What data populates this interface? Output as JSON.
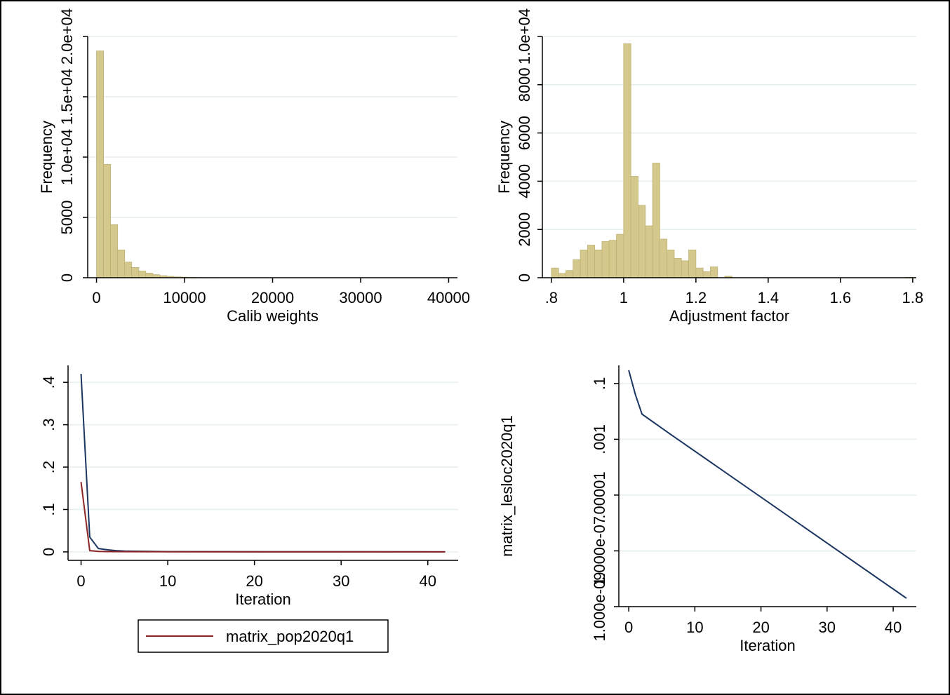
{
  "colors": {
    "bar_fill": "#d4c88c",
    "bar_stroke": "#bfb273",
    "navy": "#1a3660",
    "maroon": "#8c2525",
    "grid": "#e6eeee",
    "frame": "#000000"
  },
  "chart_data": [
    {
      "type": "bar",
      "title": "",
      "xlabel": "Calib weights",
      "ylabel": "Frequency",
      "xlim": [
        -1000,
        41000
      ],
      "ylim": [
        0,
        20000
      ],
      "xticks": [
        {
          "v": 0,
          "label": "0"
        },
        {
          "v": 10000,
          "label": "10000"
        },
        {
          "v": 20000,
          "label": "20000"
        },
        {
          "v": 30000,
          "label": "30000"
        },
        {
          "v": 40000,
          "label": "40000"
        }
      ],
      "yticks": [
        {
          "v": 0,
          "label": "0"
        },
        {
          "v": 5000,
          "label": "5000"
        },
        {
          "v": 10000,
          "label": "1.0e+04"
        },
        {
          "v": 15000,
          "label": "1.5e+04"
        },
        {
          "v": 20000,
          "label": "2.0e+04"
        }
      ],
      "grid": true,
      "bin_start": 0,
      "bin_width": 800,
      "values": [
        18800,
        9400,
        4400,
        2300,
        1300,
        850,
        550,
        380,
        250,
        170,
        110,
        70,
        50,
        30,
        20,
        12,
        8,
        5
      ]
    },
    {
      "type": "bar",
      "title": "",
      "xlabel": "Adjustment factor",
      "ylabel": "Frequency",
      "xlim": [
        0.775,
        1.81
      ],
      "ylim": [
        0,
        10000
      ],
      "xticks": [
        {
          "v": 0.8,
          "label": ".8"
        },
        {
          "v": 1.0,
          "label": "1"
        },
        {
          "v": 1.2,
          "label": "1.2"
        },
        {
          "v": 1.4,
          "label": "1.4"
        },
        {
          "v": 1.6,
          "label": "1.6"
        },
        {
          "v": 1.8,
          "label": "1.8"
        }
      ],
      "yticks": [
        {
          "v": 0,
          "label": "0"
        },
        {
          "v": 2000,
          "label": "2000"
        },
        {
          "v": 4000,
          "label": "4000"
        },
        {
          "v": 6000,
          "label": "6000"
        },
        {
          "v": 8000,
          "label": "8000"
        },
        {
          "v": 10000,
          "label": "1.0e+04"
        }
      ],
      "grid": true,
      "bin_start": 0.8,
      "bin_width": 0.02,
      "values": [
        400,
        180,
        300,
        750,
        1150,
        1350,
        1150,
        1500,
        1550,
        1800,
        9700,
        4200,
        3000,
        2150,
        4750,
        1600,
        1150,
        800,
        700,
        1150,
        400,
        250,
        450,
        0,
        60
      ],
      "extra_bars": [
        {
          "x": 1.79,
          "value": 20
        }
      ]
    },
    {
      "type": "line",
      "title": "",
      "xlabel": "Iteration",
      "ylabel": "",
      "xlim": [
        -1.5,
        43.5
      ],
      "ylim": [
        -0.02,
        0.44
      ],
      "xticks": [
        {
          "v": 0,
          "label": "0"
        },
        {
          "v": 10,
          "label": "10"
        },
        {
          "v": 20,
          "label": "20"
        },
        {
          "v": 30,
          "label": "30"
        },
        {
          "v": 40,
          "label": "40"
        }
      ],
      "yticks": [
        {
          "v": 0,
          "label": "0"
        },
        {
          "v": 0.1,
          "label": ".1"
        },
        {
          "v": 0.2,
          "label": ".2"
        },
        {
          "v": 0.3,
          "label": ".3"
        },
        {
          "v": 0.4,
          "label": ".4"
        }
      ],
      "grid": true,
      "legend": "bottom",
      "series": [
        {
          "color_key": "navy",
          "x": [
            0,
            1,
            2,
            3,
            4,
            5,
            6,
            8,
            10,
            42
          ],
          "y": [
            0.42,
            0.035,
            0.008,
            0.005,
            0.003,
            0.002,
            0.0015,
            0.001,
            0.0005,
            0.0
          ]
        },
        {
          "name": "matrix_pop2020q1",
          "color_key": "maroon",
          "x": [
            0,
            1,
            2,
            3,
            5,
            10,
            42
          ],
          "y": [
            0.165,
            0.003,
            0.001,
            0.0007,
            0.0005,
            0.0002,
            0.0
          ]
        }
      ]
    },
    {
      "type": "line",
      "title": "",
      "xlabel": "Iteration",
      "ylabel": "matrix_lesloc2020q1",
      "log_scale": true,
      "xlim": [
        -1.5,
        43.5
      ],
      "ylog_range": [
        -9,
        -0.35
      ],
      "xticks": [
        {
          "v": 0,
          "label": "0"
        },
        {
          "v": 10,
          "label": "10"
        },
        {
          "v": 20,
          "label": "20"
        },
        {
          "v": 30,
          "label": "30"
        },
        {
          "v": 40,
          "label": "40"
        }
      ],
      "yticks": [
        {
          "v": 0.1,
          "label": ".1"
        },
        {
          "v": 0.001,
          "label": ".001"
        },
        {
          "v": 1e-05,
          "label": ".00001"
        },
        {
          "v": 1e-07,
          "label": "1.000e-07"
        },
        {
          "v": 1e-09,
          "label": "1.000e-09"
        }
      ],
      "grid": true,
      "series": [
        {
          "color_key": "navy",
          "x": [
            0,
            1,
            2,
            6,
            42
          ],
          "y": [
            0.3,
            0.04,
            0.008,
            0.0017,
            2e-09
          ]
        }
      ]
    }
  ]
}
